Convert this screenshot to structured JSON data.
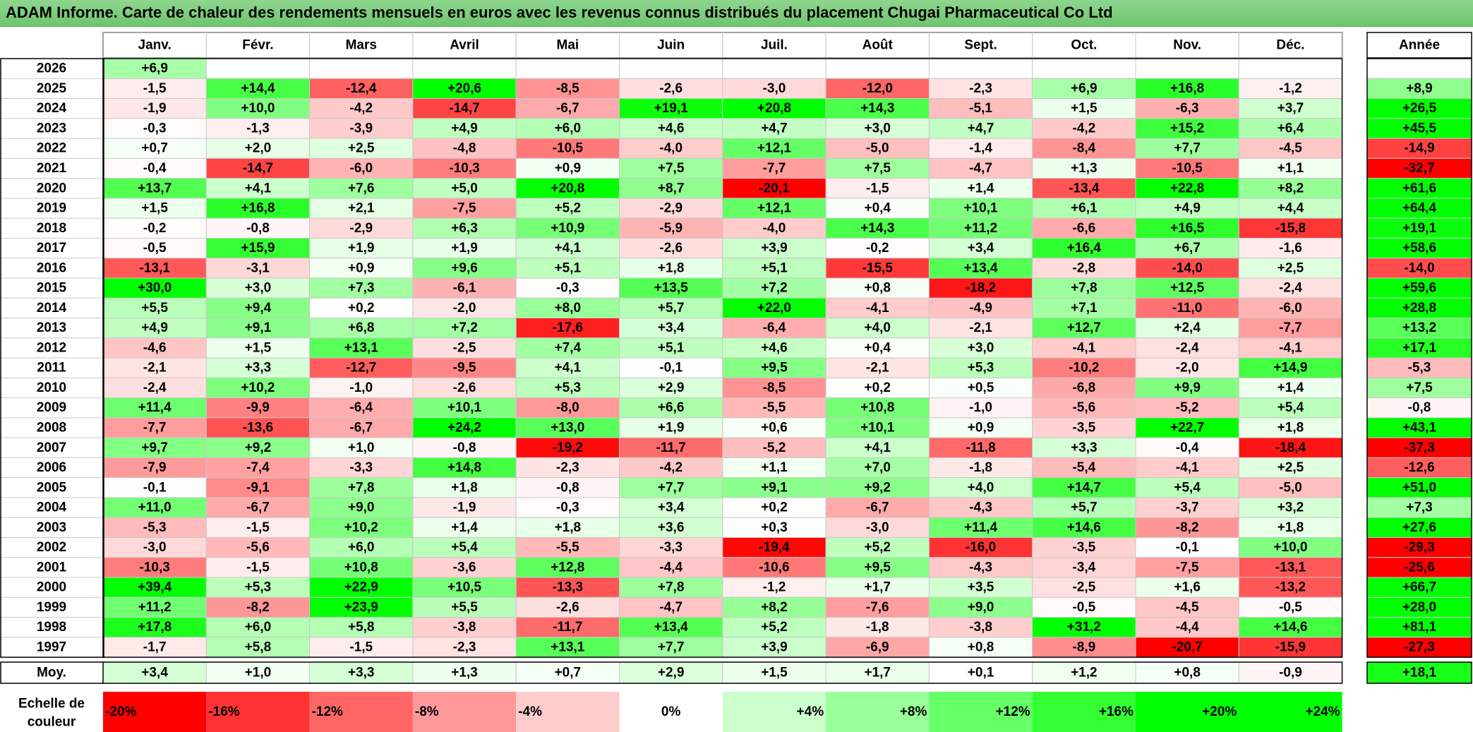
{
  "title": "ADAM Informe. Carte de chaleur des rendements mensuels en euros avec les revenus connus distribués du placement Chugai Pharmaceutical Co Ltd",
  "chart_data": {
    "type": "heatmap",
    "title": "ADAM Informe. Carte de chaleur des rendements mensuels en euros avec les revenus connus distribués du placement Chugai Pharmaceutical Co Ltd",
    "columns": [
      "Janv.",
      "Févr.",
      "Mars",
      "Avril",
      "Mai",
      "Juin",
      "Juil.",
      "Août",
      "Sept.",
      "Oct.",
      "Nov.",
      "Déc."
    ],
    "year_column": "Année",
    "rows": [
      {
        "year": "2026",
        "values": [
          "+6,9",
          "",
          "",
          "",
          "",
          "",
          "",
          "",
          "",
          "",
          "",
          ""
        ],
        "annual": ""
      },
      {
        "year": "2025",
        "values": [
          "-1,5",
          "+14,4",
          "-12,4",
          "+20,6",
          "-8,5",
          "-2,6",
          "-3,0",
          "-12,0",
          "-2,3",
          "+6,9",
          "+16,8",
          "-1,2"
        ],
        "annual": "+8,9"
      },
      {
        "year": "2024",
        "values": [
          "-1,9",
          "+10,0",
          "-4,2",
          "-14,7",
          "-6,7",
          "+19,1",
          "+20,8",
          "+14,3",
          "-5,1",
          "+1,5",
          "-6,3",
          "+3,7"
        ],
        "annual": "+26,5"
      },
      {
        "year": "2023",
        "values": [
          "-0,3",
          "-1,3",
          "-3,9",
          "+4,9",
          "+6,0",
          "+4,6",
          "+4,7",
          "+3,0",
          "+4,7",
          "-4,2",
          "+15,2",
          "+6,4"
        ],
        "annual": "+45,5"
      },
      {
        "year": "2022",
        "values": [
          "+0,7",
          "+2,0",
          "+2,5",
          "-4,8",
          "-10,5",
          "-4,0",
          "+12,1",
          "-5,0",
          "-1,4",
          "-8,4",
          "+7,7",
          "-4,5"
        ],
        "annual": "-14,9"
      },
      {
        "year": "2021",
        "values": [
          "-0,4",
          "-14,7",
          "-6,0",
          "-10,3",
          "+0,9",
          "+7,5",
          "-7,7",
          "+7,5",
          "-4,7",
          "+1,3",
          "-10,5",
          "+1,1"
        ],
        "annual": "-32,7"
      },
      {
        "year": "2020",
        "values": [
          "+13,7",
          "+4,1",
          "+7,6",
          "+5,0",
          "+20,8",
          "+8,7",
          "-20,1",
          "-1,5",
          "+1,4",
          "-13,4",
          "+22,8",
          "+8,2"
        ],
        "annual": "+61,6"
      },
      {
        "year": "2019",
        "values": [
          "+1,5",
          "+16,8",
          "+2,1",
          "-7,5",
          "+5,2",
          "-2,9",
          "+12,1",
          "+0,4",
          "+10,1",
          "+6,1",
          "+4,9",
          "+4,4"
        ],
        "annual": "+64,4"
      },
      {
        "year": "2018",
        "values": [
          "-0,2",
          "-0,8",
          "-2,9",
          "+6,3",
          "+10,9",
          "-5,9",
          "-4,0",
          "+14,3",
          "+11,2",
          "-6,6",
          "+16,5",
          "-15,8"
        ],
        "annual": "+19,1"
      },
      {
        "year": "2017",
        "values": [
          "-0,5",
          "+15,9",
          "+1,9",
          "+1,9",
          "+4,1",
          "-2,6",
          "+3,9",
          "-0,2",
          "+3,4",
          "+16,4",
          "+6,7",
          "-1,6"
        ],
        "annual": "+58,6"
      },
      {
        "year": "2016",
        "values": [
          "-13,1",
          "-3,1",
          "+0,9",
          "+9,6",
          "+5,1",
          "+1,8",
          "+5,1",
          "-15,5",
          "+13,4",
          "-2,8",
          "-14,0",
          "+2,5"
        ],
        "annual": "-14,0"
      },
      {
        "year": "2015",
        "values": [
          "+30,0",
          "+3,0",
          "+7,3",
          "-6,1",
          "-0,3",
          "+13,5",
          "+7,2",
          "+0,8",
          "-18,2",
          "+7,8",
          "+12,5",
          "-2,4"
        ],
        "annual": "+59,6"
      },
      {
        "year": "2014",
        "values": [
          "+5,5",
          "+9,4",
          "+0,2",
          "-2,0",
          "+8,0",
          "+5,7",
          "+22,0",
          "-4,1",
          "-4,9",
          "+7,1",
          "-11,0",
          "-6,0"
        ],
        "annual": "+28,8"
      },
      {
        "year": "2013",
        "values": [
          "+4,9",
          "+9,1",
          "+6,8",
          "+7,2",
          "-17,6",
          "+3,4",
          "-6,4",
          "+4,0",
          "-2,1",
          "+12,7",
          "+2,4",
          "-7,7"
        ],
        "annual": "+13,2"
      },
      {
        "year": "2012",
        "values": [
          "-4,6",
          "+1,5",
          "+13,1",
          "-2,5",
          "+7,4",
          "+5,1",
          "+4,6",
          "+0,4",
          "+3,0",
          "-4,1",
          "-2,4",
          "-4,1"
        ],
        "annual": "+17,1"
      },
      {
        "year": "2011",
        "values": [
          "-2,1",
          "+3,3",
          "-12,7",
          "-9,5",
          "+4,1",
          "-0,1",
          "+9,5",
          "-2,1",
          "+5,3",
          "-10,2",
          "-2,0",
          "+14,9"
        ],
        "annual": "-5,3"
      },
      {
        "year": "2010",
        "values": [
          "-2,4",
          "+10,2",
          "-1,0",
          "-2,6",
          "+5,3",
          "+2,9",
          "-8,5",
          "+0,2",
          "+0,5",
          "-6,8",
          "+9,9",
          "+1,4"
        ],
        "annual": "+7,5"
      },
      {
        "year": "2009",
        "values": [
          "+11,4",
          "-9,9",
          "-6,4",
          "+10,1",
          "-8,0",
          "+6,6",
          "-5,5",
          "+10,8",
          "-1,0",
          "-5,6",
          "-5,2",
          "+5,4"
        ],
        "annual": "-0,8"
      },
      {
        "year": "2008",
        "values": [
          "-7,7",
          "-13,6",
          "-6,7",
          "+24,2",
          "+13,0",
          "+1,9",
          "+0,6",
          "+10,1",
          "+0,9",
          "-3,5",
          "+22,7",
          "+1,8"
        ],
        "annual": "+43,1"
      },
      {
        "year": "2007",
        "values": [
          "+9,7",
          "+9,2",
          "+1,0",
          "-0,8",
          "-19,2",
          "-11,7",
          "-5,2",
          "+4,1",
          "-11,8",
          "+3,3",
          "-0,4",
          "-18,4"
        ],
        "annual": "-37,3"
      },
      {
        "year": "2006",
        "values": [
          "-7,9",
          "-7,4",
          "-3,3",
          "+14,8",
          "-2,3",
          "-4,2",
          "+1,1",
          "+7,0",
          "-1,8",
          "-5,4",
          "-4,1",
          "+2,5"
        ],
        "annual": "-12,6"
      },
      {
        "year": "2005",
        "values": [
          "-0,1",
          "-9,1",
          "+7,8",
          "+1,8",
          "-0,8",
          "+7,7",
          "+9,1",
          "+9,2",
          "+4,0",
          "+14,7",
          "+5,4",
          "-5,0"
        ],
        "annual": "+51,0"
      },
      {
        "year": "2004",
        "values": [
          "+11,0",
          "-6,7",
          "+9,0",
          "-1,9",
          "-0,3",
          "+3,4",
          "+0,2",
          "-6,7",
          "-4,3",
          "+5,7",
          "-3,7",
          "+3,2"
        ],
        "annual": "+7,3"
      },
      {
        "year": "2003",
        "values": [
          "-5,3",
          "-1,5",
          "+10,2",
          "+1,4",
          "+1,8",
          "+3,6",
          "+0,3",
          "-3,0",
          "+11,4",
          "+14,6",
          "-8,2",
          "+1,8"
        ],
        "annual": "+27,6"
      },
      {
        "year": "2002",
        "values": [
          "-3,0",
          "-5,6",
          "+6,0",
          "+5,4",
          "-5,5",
          "-3,3",
          "-19,4",
          "+5,2",
          "-16,0",
          "-3,5",
          "-0,1",
          "+10,0"
        ],
        "annual": "-29,3"
      },
      {
        "year": "2001",
        "values": [
          "-10,3",
          "-1,5",
          "+10,8",
          "-3,6",
          "+12,8",
          "-4,4",
          "-10,6",
          "+9,5",
          "-4,3",
          "-3,4",
          "-7,5",
          "-13,1"
        ],
        "annual": "-25,6"
      },
      {
        "year": "2000",
        "values": [
          "+39,4",
          "+5,3",
          "+22,9",
          "+10,5",
          "-13,3",
          "+7,8",
          "-1,2",
          "+1,7",
          "+3,5",
          "-2,5",
          "+1,6",
          "-13,2"
        ],
        "annual": "+66,7"
      },
      {
        "year": "1999",
        "values": [
          "+11,2",
          "-8,2",
          "+23,9",
          "+5,5",
          "-2,6",
          "-4,7",
          "+8,2",
          "-7,6",
          "+9,0",
          "-0,5",
          "-4,5",
          "-0,5"
        ],
        "annual": "+28,0"
      },
      {
        "year": "1998",
        "values": [
          "+17,8",
          "+6,0",
          "+5,8",
          "-3,8",
          "-11,7",
          "+13,4",
          "+5,2",
          "-1,8",
          "-3,8",
          "+31,2",
          "-4,4",
          "+14,6"
        ],
        "annual": "+81,1"
      },
      {
        "year": "1997",
        "values": [
          "-1,7",
          "+5,8",
          "-1,5",
          "-2,3",
          "+13,1",
          "+7,7",
          "+3,9",
          "-6,9",
          "+0,8",
          "-8,9",
          "-20,7",
          "-15,9"
        ],
        "annual": "-27,3"
      }
    ],
    "average": {
      "label": "Moy.",
      "values": [
        "+3,4",
        "+1,0",
        "+3,3",
        "+1,3",
        "+0,7",
        "+2,9",
        "+1,5",
        "+1,7",
        "+0,1",
        "+1,2",
        "+0,8",
        "-0,9"
      ],
      "annual": "+18,1"
    },
    "color_scale": {
      "label_line1": "Echelle de",
      "label_line2": "couleur",
      "stops": [
        {
          "label": "-20%",
          "value": -20,
          "color": "#ff0000"
        },
        {
          "label": "-16%",
          "value": -16,
          "color": "#ff3333"
        },
        {
          "label": "-12%",
          "value": -12,
          "color": "#ff6666"
        },
        {
          "label": "-8%",
          "value": -8,
          "color": "#ff9999"
        },
        {
          "label": "-4%",
          "value": -4,
          "color": "#ffcccc"
        },
        {
          "label": "0%",
          "value": 0,
          "color": "#ffffff"
        },
        {
          "label": "+4%",
          "value": 4,
          "color": "#ccffcc"
        },
        {
          "label": "+8%",
          "value": 8,
          "color": "#99ff99"
        },
        {
          "label": "+12%",
          "value": 12,
          "color": "#66ff66"
        },
        {
          "label": "+16%",
          "value": 16,
          "color": "#33ff33"
        },
        {
          "label": "+20%",
          "value": 20,
          "color": "#00ff00"
        },
        {
          "label": "+24%",
          "value": 24,
          "color": "#00ff00"
        }
      ]
    },
    "colors": {
      "title_bar": "#79c879",
      "positive": "#00ff00",
      "negative": "#ff0000",
      "neutral": "#ffffff"
    }
  }
}
